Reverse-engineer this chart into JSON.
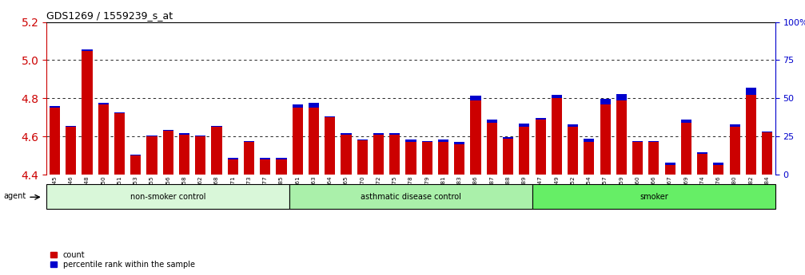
{
  "title": "GDS1269 / 1559239_s_at",
  "samples": [
    "GSM38345",
    "GSM38346",
    "GSM38348",
    "GSM38350",
    "GSM38351",
    "GSM38353",
    "GSM38355",
    "GSM38356",
    "GSM38358",
    "GSM38362",
    "GSM38368",
    "GSM38371",
    "GSM38373",
    "GSM38377",
    "GSM38385",
    "GSM38361",
    "GSM38363",
    "GSM38364",
    "GSM38365",
    "GSM38370",
    "GSM38372",
    "GSM38375",
    "GSM38378",
    "GSM38379",
    "GSM38381",
    "GSM38383",
    "GSM38386",
    "GSM38387",
    "GSM38388",
    "GSM38389",
    "GSM38347",
    "GSM38349",
    "GSM38352",
    "GSM38354",
    "GSM38357",
    "GSM38359",
    "GSM38360",
    "GSM38366",
    "GSM38367",
    "GSM38369",
    "GSM38374",
    "GSM38376",
    "GSM38380",
    "GSM38382",
    "GSM38384"
  ],
  "red_values": [
    4.75,
    4.65,
    5.05,
    4.77,
    4.72,
    4.5,
    4.6,
    4.63,
    4.61,
    4.6,
    4.65,
    4.48,
    4.57,
    4.48,
    4.48,
    4.75,
    4.75,
    4.7,
    4.61,
    4.58,
    4.61,
    4.61,
    4.57,
    4.57,
    4.57,
    4.56,
    4.79,
    4.67,
    4.59,
    4.65,
    4.69,
    4.8,
    4.65,
    4.57,
    4.77,
    4.79,
    4.57,
    4.57,
    4.45,
    4.67,
    4.51,
    4.45,
    4.65,
    4.82,
    4.62
  ],
  "blue_values": [
    0.008,
    0.006,
    0.006,
    0.006,
    0.006,
    0.006,
    0.006,
    0.006,
    0.006,
    0.006,
    0.006,
    0.006,
    0.006,
    0.006,
    0.006,
    0.018,
    0.025,
    0.006,
    0.006,
    0.006,
    0.006,
    0.006,
    0.015,
    0.006,
    0.013,
    0.013,
    0.025,
    0.018,
    0.006,
    0.018,
    0.006,
    0.02,
    0.014,
    0.02,
    0.028,
    0.033,
    0.006,
    0.006,
    0.015,
    0.02,
    0.006,
    0.013,
    0.015,
    0.035,
    0.006
  ],
  "groups": [
    {
      "label": "non-smoker control",
      "start": 0,
      "end": 15,
      "color": "#d9f7d9"
    },
    {
      "label": "asthmatic disease control",
      "start": 15,
      "end": 30,
      "color": "#aaf0aa"
    },
    {
      "label": "smoker",
      "start": 30,
      "end": 45,
      "color": "#66ee66"
    }
  ],
  "ylim_left": [
    4.4,
    5.2
  ],
  "ylim_right": [
    0,
    100
  ],
  "yticks_left": [
    4.4,
    4.6,
    4.8,
    5.0,
    5.2
  ],
  "yticks_right": [
    0,
    25,
    50,
    75,
    100
  ],
  "ytick_labels_right": [
    "0",
    "25",
    "50",
    "75",
    "100%"
  ],
  "bar_color_red": "#cc0000",
  "bar_color_blue": "#0000cc",
  "left_axis_color": "#cc0000",
  "right_axis_color": "#0000cc",
  "bar_width": 0.65,
  "base_value": 4.4
}
